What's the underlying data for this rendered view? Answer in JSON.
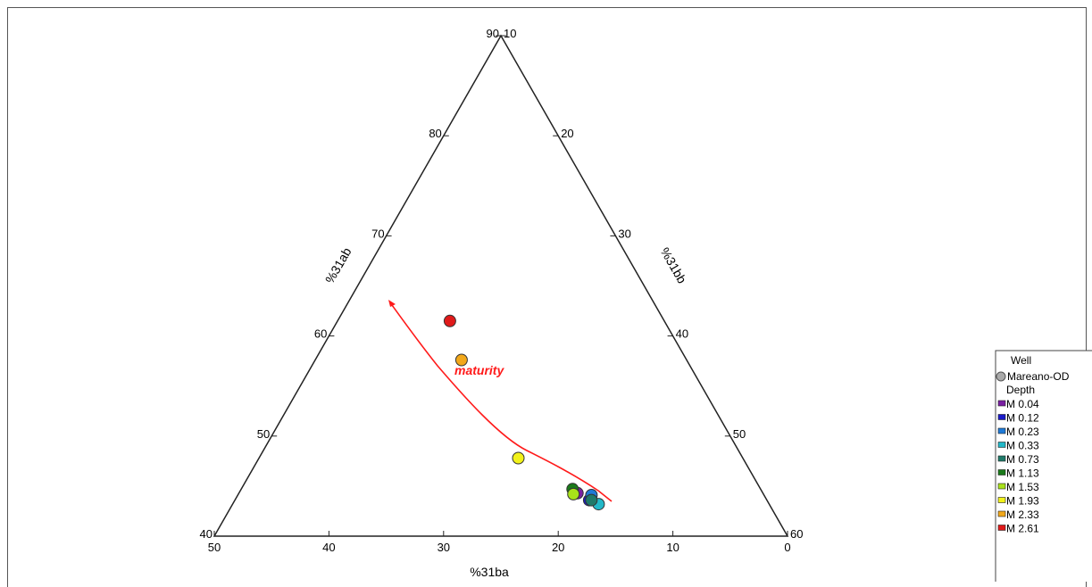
{
  "chart_data": {
    "type": "scatter",
    "subtype": "ternary",
    "title": "",
    "axes": {
      "bottom": {
        "label": "%31ba",
        "ticks": [
          "50",
          "40",
          "30",
          "20",
          "10",
          "0"
        ]
      },
      "left": {
        "label": "%31ab",
        "ticks": [
          "40",
          "50",
          "60",
          "70",
          "80",
          "90"
        ]
      },
      "right": {
        "label": "%31bb",
        "ticks": [
          "10",
          "20",
          "30",
          "40",
          "50",
          "60"
        ]
      }
    },
    "annotation": {
      "text": "maturity",
      "color": "#ff1a1a"
    },
    "legend": {
      "position": "bottom-right",
      "well_header": "Well",
      "well_label": "Mareano-OD",
      "depth_header": "Depth"
    },
    "series": [
      {
        "name": "M 0.04",
        "color": "#7a1fa2",
        "points": [
          {
            "ba": 17.7,
            "ab": 44.3,
            "bb": 38.0
          }
        ]
      },
      {
        "name": "M 0.12",
        "color": "#1a1ac8",
        "points": [
          {
            "ba": 16.7,
            "ab": 43.6,
            "bb": 39.7
          }
        ]
      },
      {
        "name": "M 0.23",
        "color": "#1e7ad8",
        "points": [
          {
            "ba": 16.4,
            "ab": 44.1,
            "bb": 39.5
          }
        ]
      },
      {
        "name": "M 0.33",
        "color": "#22b8c8",
        "points": [
          {
            "ba": 15.9,
            "ab": 43.2,
            "bb": 40.9
          }
        ]
      },
      {
        "name": "M 0.73",
        "color": "#1f7a6a",
        "points": [
          {
            "ba": 16.5,
            "ab": 43.6,
            "bb": 39.9
          }
        ]
      },
      {
        "name": "M 1.13",
        "color": "#1a7a1a",
        "points": [
          {
            "ba": 18.1,
            "ab": 44.7,
            "bb": 37.2
          }
        ]
      },
      {
        "name": "M 1.53",
        "color": "#a8e21a",
        "points": [
          {
            "ba": 18.1,
            "ab": 44.2,
            "bb": 37.7
          }
        ]
      },
      {
        "name": "M 1.93",
        "color": "#f2f21a",
        "points": [
          {
            "ba": 23.2,
            "ab": 47.8,
            "bb": 29.0
          }
        ]
      },
      {
        "name": "M 2.33",
        "color": "#f2a81a",
        "points": [
          {
            "ba": 30.3,
            "ab": 57.6,
            "bb": 12.1
          }
        ]
      },
      {
        "name": "M 2.61",
        "color": "#e01a1a",
        "points": [
          {
            "ba": 32.8,
            "ab": 61.5,
            "bb": 5.7
          }
        ]
      }
    ]
  }
}
